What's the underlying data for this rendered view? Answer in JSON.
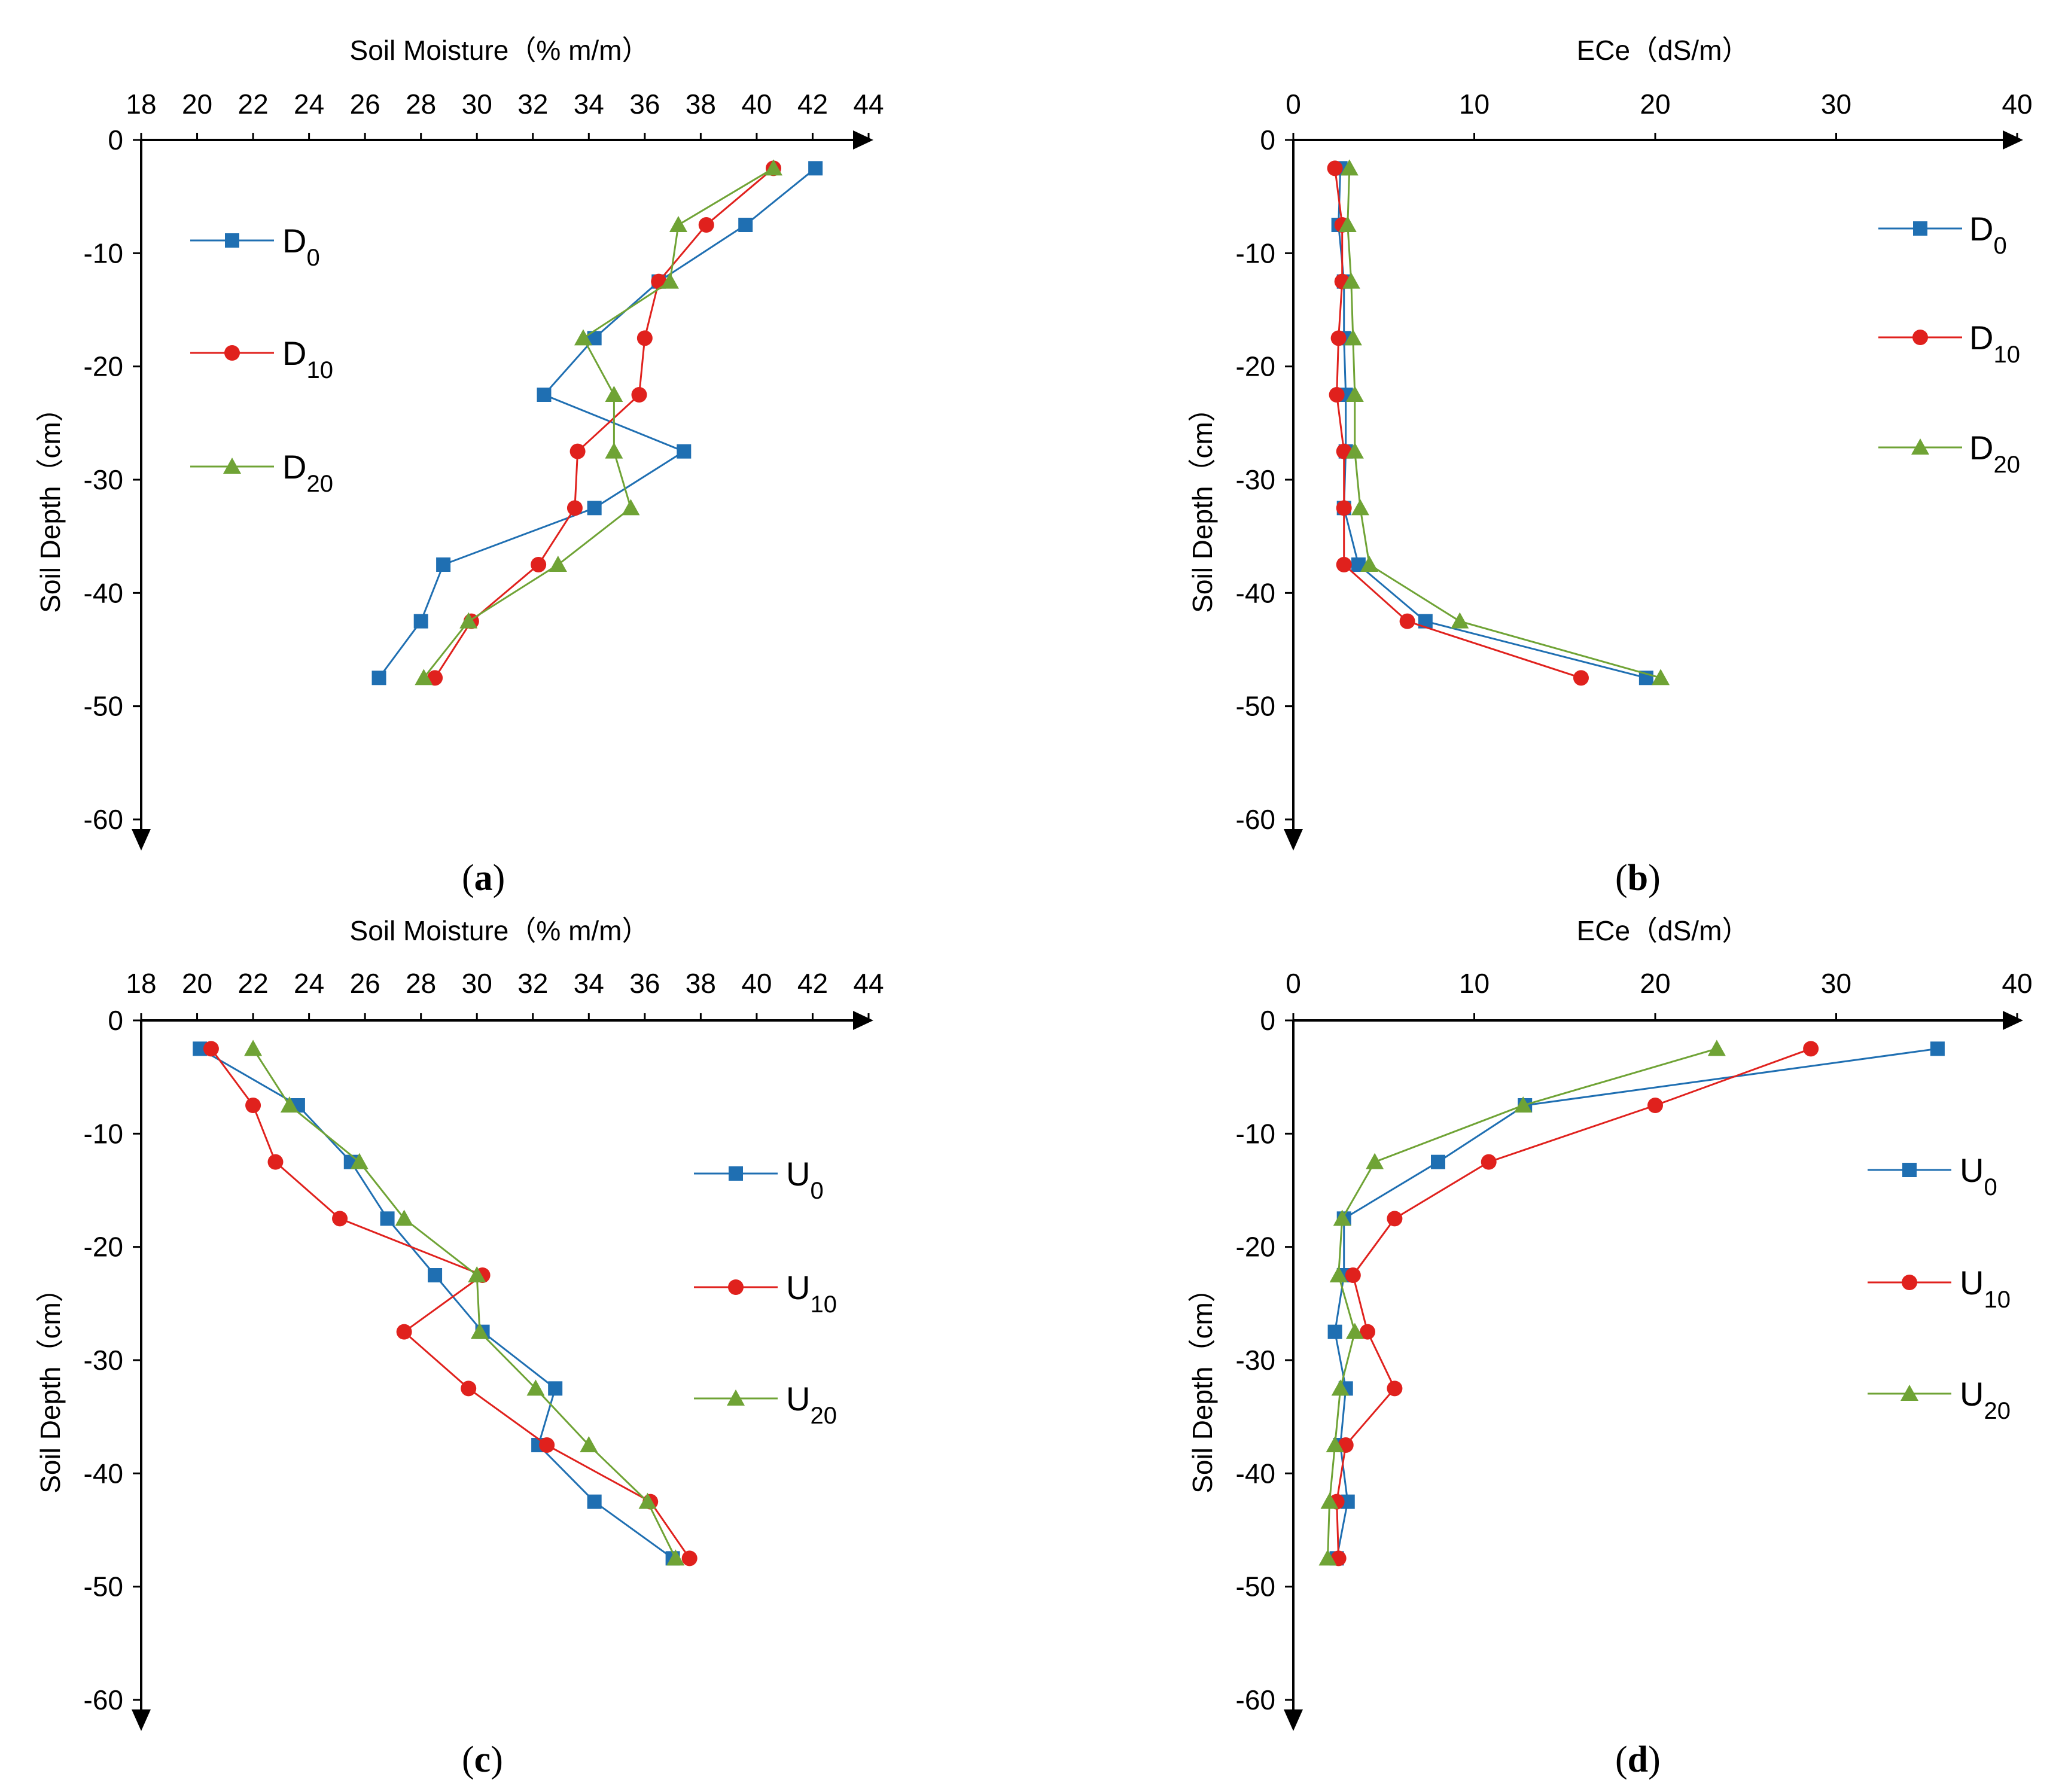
{
  "chart_data": [
    {
      "panel": "(a)",
      "panel_letter": "a",
      "type": "line",
      "title": "Soil Moisture（% m/m）",
      "xlabel": "Soil Moisture（% m/m）",
      "ylabel": "Soil Depth（cm）",
      "xlim": [
        18,
        44
      ],
      "xticks": [
        "18",
        "20",
        "22",
        "24",
        "26",
        "28",
        "30",
        "32",
        "34",
        "36",
        "38",
        "40",
        "42",
        "44"
      ],
      "ylim": [
        -60,
        0
      ],
      "yticks": [
        "0",
        "-10",
        "-20",
        "-30",
        "-40",
        "-50",
        "-60"
      ],
      "legend_position": "upper-left",
      "series": [
        {
          "name": "D",
          "sub": "0",
          "marker": "square",
          "color": "#1F6FB2",
          "points": [
            [
              42.1,
              -2.5
            ],
            [
              39.6,
              -7.5
            ],
            [
              36.5,
              -12.5
            ],
            [
              34.2,
              -17.5
            ],
            [
              32.4,
              -22.5
            ],
            [
              37.4,
              -27.5
            ],
            [
              34.2,
              -32.5
            ],
            [
              28.8,
              -37.5
            ],
            [
              28.0,
              -42.5
            ],
            [
              26.5,
              -47.5
            ]
          ]
        },
        {
          "name": "D",
          "sub": "10",
          "marker": "circle",
          "color": "#E0211D",
          "points": [
            [
              40.6,
              -2.5
            ],
            [
              38.2,
              -7.5
            ],
            [
              36.5,
              -12.5
            ],
            [
              36.0,
              -17.5
            ],
            [
              35.8,
              -22.5
            ],
            [
              33.6,
              -27.5
            ],
            [
              33.5,
              -32.5
            ],
            [
              32.2,
              -37.5
            ],
            [
              29.8,
              -42.5
            ],
            [
              28.5,
              -47.5
            ]
          ]
        },
        {
          "name": "D",
          "sub": "20",
          "marker": "triangle",
          "color": "#6FA335",
          "points": [
            [
              40.6,
              -2.5
            ],
            [
              37.2,
              -7.5
            ],
            [
              36.9,
              -12.5
            ],
            [
              33.8,
              -17.5
            ],
            [
              34.9,
              -22.5
            ],
            [
              34.9,
              -27.5
            ],
            [
              35.5,
              -32.5
            ],
            [
              32.9,
              -37.5
            ],
            [
              29.7,
              -42.5
            ],
            [
              28.1,
              -47.5
            ]
          ]
        }
      ]
    },
    {
      "panel": "(b)",
      "panel_letter": "b",
      "type": "line",
      "title": "ECe（dS/m）",
      "xlabel": "ECe（dS/m）",
      "ylabel": "Soil Depth（cm）",
      "xlim": [
        0,
        40
      ],
      "xticks": [
        "0",
        "10",
        "20",
        "30",
        "40"
      ],
      "ylim": [
        -60,
        0
      ],
      "yticks": [
        "0",
        "-10",
        "-20",
        "-30",
        "-40",
        "-50",
        "-60"
      ],
      "legend_position": "upper-right",
      "series": [
        {
          "name": "D",
          "sub": "0",
          "marker": "square",
          "color": "#1F6FB2",
          "points": [
            [
              2.6,
              -2.5
            ],
            [
              2.5,
              -7.5
            ],
            [
              2.8,
              -12.5
            ],
            [
              2.8,
              -17.5
            ],
            [
              2.9,
              -22.5
            ],
            [
              2.9,
              -27.5
            ],
            [
              2.8,
              -32.5
            ],
            [
              3.6,
              -37.5
            ],
            [
              7.3,
              -42.5
            ],
            [
              19.5,
              -47.5
            ]
          ]
        },
        {
          "name": "D",
          "sub": "10",
          "marker": "circle",
          "color": "#E0211D",
          "points": [
            [
              2.3,
              -2.5
            ],
            [
              2.7,
              -7.5
            ],
            [
              2.7,
              -12.5
            ],
            [
              2.5,
              -17.5
            ],
            [
              2.4,
              -22.5
            ],
            [
              2.8,
              -27.5
            ],
            [
              2.8,
              -32.5
            ],
            [
              2.8,
              -37.5
            ],
            [
              6.3,
              -42.5
            ],
            [
              15.9,
              -47.5
            ]
          ]
        },
        {
          "name": "D",
          "sub": "20",
          "marker": "triangle",
          "color": "#6FA335",
          "points": [
            [
              3.1,
              -2.5
            ],
            [
              3.0,
              -7.5
            ],
            [
              3.2,
              -12.5
            ],
            [
              3.3,
              -17.5
            ],
            [
              3.4,
              -22.5
            ],
            [
              3.4,
              -27.5
            ],
            [
              3.7,
              -32.5
            ],
            [
              4.2,
              -37.5
            ],
            [
              9.2,
              -42.5
            ],
            [
              20.3,
              -47.5
            ]
          ]
        }
      ]
    },
    {
      "panel": "(c)",
      "panel_letter": "c",
      "type": "line",
      "title": "Soil Moisture（% m/m）",
      "xlabel": "Soil Moisture（% m/m）",
      "ylabel": "Soil Depth（cm）",
      "xlim": [
        18,
        44
      ],
      "xticks": [
        "18",
        "20",
        "22",
        "24",
        "26",
        "28",
        "30",
        "32",
        "34",
        "36",
        "38",
        "40",
        "42",
        "44"
      ],
      "ylim": [
        -60,
        0
      ],
      "yticks": [
        "0",
        "-10",
        "-20",
        "-30",
        "-40",
        "-50",
        "-60"
      ],
      "legend_position": "right",
      "series": [
        {
          "name": "U",
          "sub": "0",
          "marker": "square",
          "color": "#1F6FB2",
          "points": [
            [
              20.1,
              -2.5
            ],
            [
              23.6,
              -7.5
            ],
            [
              25.5,
              -12.5
            ],
            [
              26.8,
              -17.5
            ],
            [
              28.5,
              -22.5
            ],
            [
              30.2,
              -27.5
            ],
            [
              32.8,
              -32.5
            ],
            [
              32.2,
              -37.5
            ],
            [
              34.2,
              -42.5
            ],
            [
              37.0,
              -47.5
            ]
          ]
        },
        {
          "name": "U",
          "sub": "10",
          "marker": "circle",
          "color": "#E0211D",
          "points": [
            [
              20.5,
              -2.5
            ],
            [
              22.0,
              -7.5
            ],
            [
              22.8,
              -12.5
            ],
            [
              25.1,
              -17.5
            ],
            [
              30.2,
              -22.5
            ],
            [
              27.4,
              -27.5
            ],
            [
              29.7,
              -32.5
            ],
            [
              32.5,
              -37.5
            ],
            [
              36.2,
              -42.5
            ],
            [
              37.6,
              -47.5
            ]
          ]
        },
        {
          "name": "U",
          "sub": "20",
          "marker": "triangle",
          "color": "#6FA335",
          "points": [
            [
              22.0,
              -2.5
            ],
            [
              23.3,
              -7.5
            ],
            [
              25.8,
              -12.5
            ],
            [
              27.4,
              -17.5
            ],
            [
              30.0,
              -22.5
            ],
            [
              30.1,
              -27.5
            ],
            [
              32.1,
              -32.5
            ],
            [
              34.0,
              -37.5
            ],
            [
              36.1,
              -42.5
            ],
            [
              37.1,
              -47.5
            ]
          ]
        }
      ]
    },
    {
      "panel": "(d)",
      "panel_letter": "d",
      "type": "line",
      "title": "ECe（dS/m）",
      "xlabel": "ECe（dS/m）",
      "ylabel": "Soil Depth（cm）",
      "xlim": [
        0,
        40
      ],
      "xticks": [
        "0",
        "10",
        "20",
        "30",
        "40"
      ],
      "ylim": [
        -60,
        0
      ],
      "yticks": [
        "0",
        "-10",
        "-20",
        "-30",
        "-40",
        "-50",
        "-60"
      ],
      "legend_position": "right",
      "series": [
        {
          "name": "U",
          "sub": "0",
          "marker": "square",
          "color": "#1F6FB2",
          "points": [
            [
              35.6,
              -2.5
            ],
            [
              12.8,
              -7.5
            ],
            [
              8.0,
              -12.5
            ],
            [
              2.8,
              -17.5
            ],
            [
              2.8,
              -22.5
            ],
            [
              2.3,
              -27.5
            ],
            [
              2.9,
              -32.5
            ],
            [
              2.6,
              -37.5
            ],
            [
              3.0,
              -42.5
            ],
            [
              2.4,
              -47.5
            ]
          ]
        },
        {
          "name": "U",
          "sub": "10",
          "marker": "circle",
          "color": "#E0211D",
          "points": [
            [
              28.6,
              -2.5
            ],
            [
              20.0,
              -7.5
            ],
            [
              10.8,
              -12.5
            ],
            [
              5.6,
              -17.5
            ],
            [
              3.3,
              -22.5
            ],
            [
              4.1,
              -27.5
            ],
            [
              5.6,
              -32.5
            ],
            [
              2.9,
              -37.5
            ],
            [
              2.4,
              -42.5
            ],
            [
              2.5,
              -47.5
            ]
          ]
        },
        {
          "name": "U",
          "sub": "20",
          "marker": "triangle",
          "color": "#6FA335",
          "points": [
            [
              23.4,
              -2.5
            ],
            [
              12.7,
              -7.5
            ],
            [
              4.5,
              -12.5
            ],
            [
              2.7,
              -17.5
            ],
            [
              2.5,
              -22.5
            ],
            [
              3.4,
              -27.5
            ],
            [
              2.6,
              -32.5
            ],
            [
              2.3,
              -37.5
            ],
            [
              2.0,
              -42.5
            ],
            [
              1.9,
              -47.5
            ]
          ]
        }
      ]
    }
  ]
}
